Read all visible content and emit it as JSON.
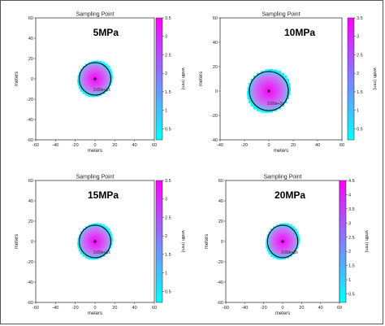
{
  "chart_data": [
    {
      "type": "heatmap",
      "title": "Sampling Point",
      "pressure_label": "5MPa",
      "xlabel": "meters",
      "ylabel": "meters",
      "xlim": [
        -60,
        60
      ],
      "ylim": [
        -60,
        60
      ],
      "xticks": [
        -60,
        -40,
        -20,
        0,
        20,
        40,
        60
      ],
      "yticks": [
        -60,
        -40,
        -20,
        0,
        20,
        40,
        60
      ],
      "colorbar": {
        "label": "width (mm)",
        "min": 0.2,
        "max": 3.5,
        "ticks": [
          0.5,
          1.0,
          1.5,
          2.0,
          2.5,
          3.0,
          3.5
        ]
      },
      "fracture_radius_m": 18,
      "contour_radius_m": 16,
      "center": [
        0,
        0
      ],
      "annotation": "3.60e+3s"
    },
    {
      "type": "heatmap",
      "title": "Sampling Point",
      "pressure_label": "10MPa",
      "xlabel": "meters",
      "ylabel": "meters",
      "xlim": [
        -40,
        60
      ],
      "ylim": [
        -40,
        60
      ],
      "xticks": [
        -40,
        -20,
        0,
        20,
        40,
        60
      ],
      "yticks": [
        -40,
        -20,
        0,
        20,
        40,
        60
      ],
      "colorbar": {
        "label": "width (mm)",
        "min": 0.2,
        "max": 3.5,
        "ticks": [
          0.5,
          1.0,
          1.5,
          2.0,
          2.5,
          3.0,
          3.5
        ]
      },
      "fracture_radius_m": 18,
      "contour_radius_m": 16,
      "center": [
        0,
        0
      ],
      "annotation": "3.60e+3s"
    },
    {
      "type": "heatmap",
      "title": "Sampling Point",
      "pressure_label": "15MPa",
      "xlabel": "meters",
      "ylabel": "meters",
      "xlim": [
        -60,
        60
      ],
      "ylim": [
        -60,
        60
      ],
      "xticks": [
        -60,
        -40,
        -20,
        0,
        20,
        40,
        60
      ],
      "yticks": [
        -60,
        -40,
        -20,
        0,
        20,
        40,
        60
      ],
      "colorbar": {
        "label": "width (mm)",
        "min": 0.2,
        "max": 3.5,
        "ticks": [
          0.5,
          1.0,
          1.5,
          2.0,
          2.5,
          3.0,
          3.5
        ]
      },
      "fracture_radius_m": 18,
      "contour_radius_m": 16,
      "center": [
        0,
        0
      ],
      "annotation": "3.60e+3s"
    },
    {
      "type": "heatmap",
      "title": "Sampling Point",
      "pressure_label": "20MPa",
      "xlabel": "meters",
      "ylabel": "meters",
      "xlim": [
        -60,
        60
      ],
      "ylim": [
        -60,
        60
      ],
      "xticks": [
        -60,
        -40,
        -20,
        0,
        20,
        40,
        60
      ],
      "yticks": [
        -60,
        -40,
        -20,
        0,
        20,
        40,
        60
      ],
      "colorbar": {
        "label": "width (mm)",
        "min": 0.2,
        "max": 4.5,
        "ticks": [
          0.5,
          1.0,
          1.5,
          2.0,
          2.5,
          3.0,
          3.5,
          4.0,
          4.5
        ]
      },
      "fracture_radius_m": 18,
      "contour_radius_m": 16,
      "center": [
        0,
        0
      ],
      "annotation": "3.60e+3s"
    }
  ],
  "colors": {
    "cmap_low": "#00ffff",
    "cmap_high": "#ff00ff",
    "contour": "#000000",
    "center_point": "#000000"
  }
}
